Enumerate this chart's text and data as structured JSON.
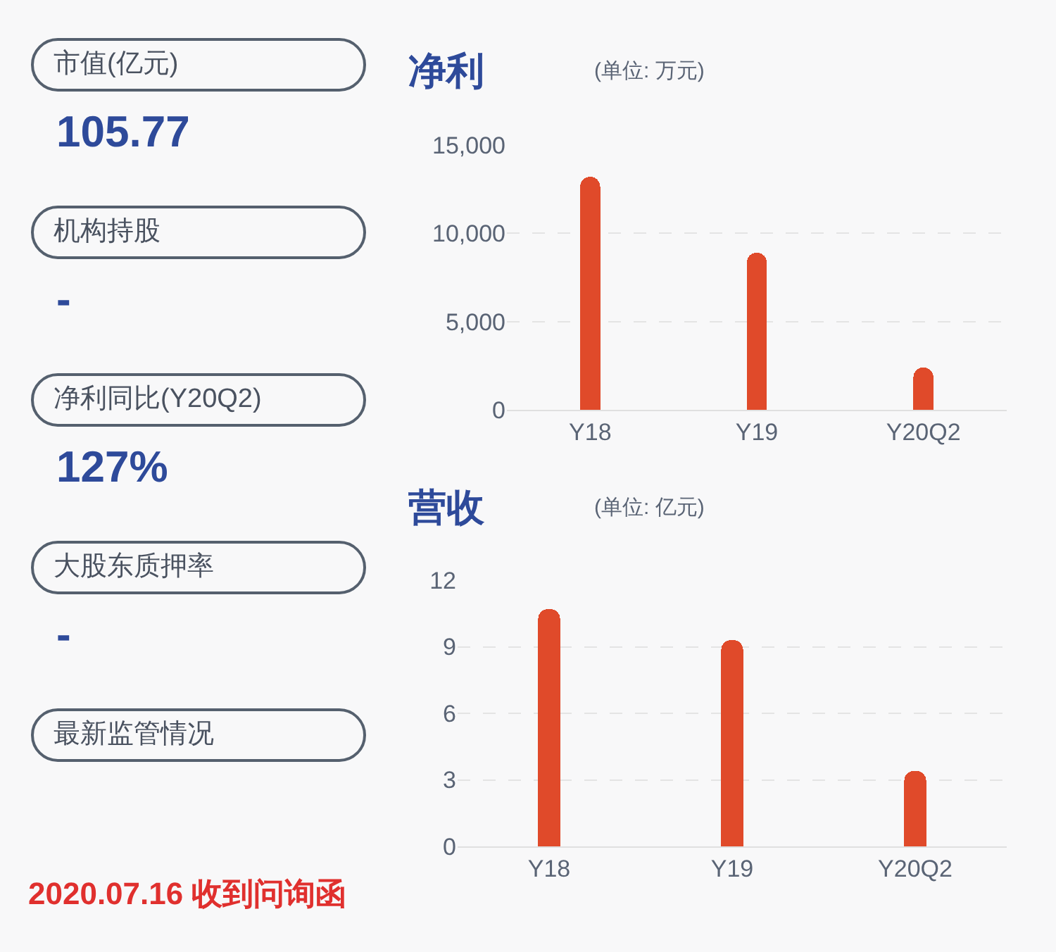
{
  "chart_data": [
    {
      "type": "other",
      "annotations": [
        "市值(亿元)",
        "105.77",
        "机构持股",
        "-",
        "净利同比(Y20Q2)",
        "127%",
        "大股东质押率",
        "-",
        "最新监管情况",
        "2020.07.16 收到问询函"
      ]
    },
    {
      "type": "bar",
      "title": "净利",
      "subtitle": "(单位: 万元)",
      "categories": [
        "Y18",
        "Y19",
        "Y20Q2"
      ],
      "values": [
        13200,
        8900,
        2400
      ],
      "color": "#e04a2a",
      "ylim": [
        0,
        15000
      ],
      "yticks": [
        0,
        {
          "value": 5000,
          "label": "5,000"
        },
        {
          "value": 10000,
          "label": "10,000"
        },
        {
          "value": 15000,
          "label": "15,000"
        }
      ],
      "grid": "y"
    },
    {
      "type": "bar",
      "title": "营收",
      "subtitle": "(单位: 亿元)",
      "categories": [
        "Y18",
        "Y19",
        "Y20Q2"
      ],
      "values": [
        10.7,
        9.3,
        3.4
      ],
      "color": "#e04a2a",
      "ylim": [
        0,
        12
      ],
      "yticks": [
        0,
        3,
        6,
        9,
        12
      ],
      "grid": "y"
    }
  ]
}
